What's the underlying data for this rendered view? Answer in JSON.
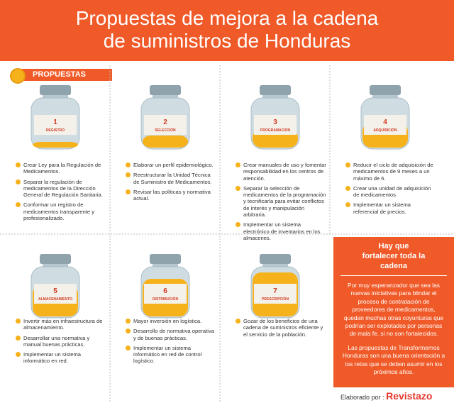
{
  "header": {
    "title_lines": [
      "Propuestas de mejora a la cadena",
      "de suministros de Honduras"
    ]
  },
  "section_label": "PROPUESTAS",
  "items": [
    {
      "number": 1,
      "label": "REGISTRO",
      "bullets": [
        "Crear Ley para la Regulación de Medicamentos.",
        "Separar la regulación de medicamentos de la Dirección General de Regulación Sanitaria.",
        "Conformar un registro de medicamentos transparente y profesionalizado."
      ]
    },
    {
      "number": 2,
      "label": "SELECCIÓN",
      "bullets": [
        "Elaborar un perfil epidemiológico.",
        "Reestructurar la Unidad Técnica de Suministro de Medicamentos.",
        "Revisar las políticas y normativa actual."
      ]
    },
    {
      "number": 3,
      "label": "PROGRAMACIÓN",
      "bullets": [
        "Crear manuales de uso y fomentar responsabilidad en los centros de atención.",
        "Separar la selección de medicamentos de la programación y tecnificarla para evitar conflictos de interés y manipulación arbitraria.",
        "Implementar un sistema electrónico de inventarios en los almacenes."
      ]
    },
    {
      "number": 4,
      "label": "ADQUISICIÓN",
      "bullets": [
        "Reducir el ciclo de adquisición de medicamentos de 9 meses a un máximo de 6.",
        "Crear una unidad de adquisición de medicamentos",
        "Implementar un sistema referencial de precios."
      ]
    },
    {
      "number": 5,
      "label": "ALMACENAMIENTO",
      "bullets": [
        "Invertir más en infraestructura de almacenamiento.",
        "Desarrollar una normativa y manual buenas prácticas.",
        "Implementar un sistema informático en red."
      ]
    },
    {
      "number": 6,
      "label": "DISTRIBUCIÓN",
      "bullets": [
        "Mayor inversión en logística.",
        "Desarrollo de normativa operativa y de buenas prácticas.",
        "Implementar un sistema informático en red de control logístico."
      ]
    },
    {
      "number": 7,
      "label": "PRESCRIPCIÓN",
      "bullets": [
        "Gozar de los beneficios de una cadena de suministros eficiente y el servicio de la población."
      ]
    }
  ],
  "panel": {
    "title": "Hay que fortalecer toda la cadena",
    "paragraphs": [
      "Por muy esperanzador que sea las nuevas iniciativas para blindar el proceso de contratación de proveedores de medicamentos, quedan muchas otras coyunturas que podrían ser explotados por personas de mala fe, si no son fortalecidos.",
      "Las propuestas de Transformemos Honduras son una buena orientación a los retos que se deben asumir en los próximos años."
    ]
  },
  "footer": {
    "prefix": "Elaborado por :",
    "brand": "Revistazo"
  }
}
